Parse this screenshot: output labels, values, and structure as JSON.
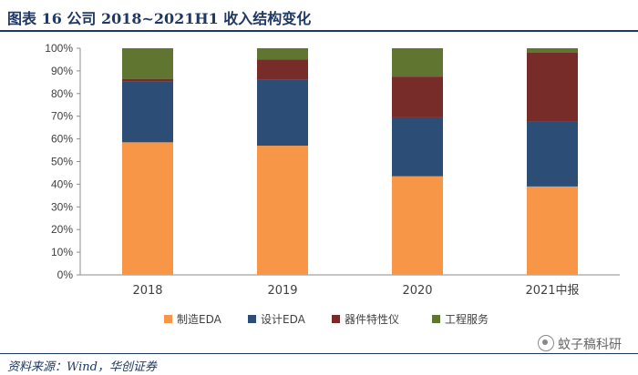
{
  "figure": {
    "title": "图表 16   公司 2018~2021H1 收入结构变化",
    "source": "资料来源：Wind，华创证券",
    "watermark": "蚊子稿科研"
  },
  "chart_data": {
    "type": "bar",
    "stacked": true,
    "categories": [
      "2018",
      "2019",
      "2020",
      "2021中报"
    ],
    "series": [
      {
        "name": "制造EDA",
        "color": "#F79646",
        "values": [
          58.5,
          57,
          43.5,
          39
        ]
      },
      {
        "name": "设计EDA",
        "color": "#2C4D75",
        "values": [
          27,
          29,
          26,
          28.5
        ]
      },
      {
        "name": "器件特性仪",
        "color": "#772C2A",
        "values": [
          1,
          9,
          18,
          30.5
        ]
      },
      {
        "name": "工程服务",
        "color": "#5F7530",
        "values": [
          13.5,
          5,
          12.5,
          2
        ]
      }
    ],
    "ylim": [
      0,
      100
    ],
    "yticks": [
      0,
      10,
      20,
      30,
      40,
      50,
      60,
      70,
      80,
      90,
      100
    ],
    "ytick_labels": [
      "0%",
      "10%",
      "20%",
      "30%",
      "40%",
      "50%",
      "60%",
      "70%",
      "80%",
      "90%",
      "100%"
    ],
    "xlabel": "",
    "ylabel": "",
    "grid": false,
    "legend_position": "bottom"
  }
}
